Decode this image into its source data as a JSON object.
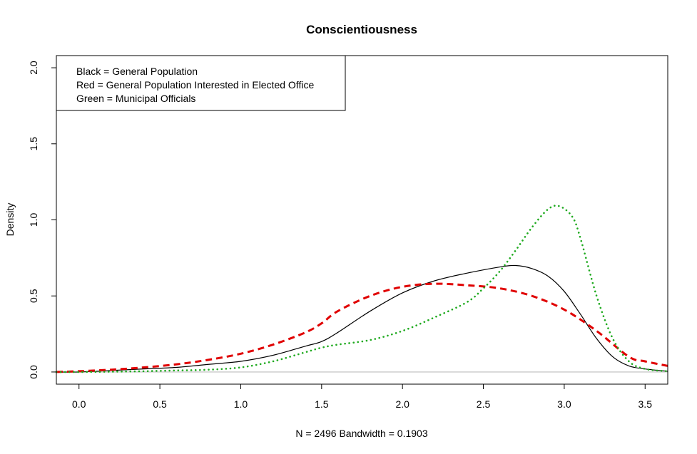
{
  "chart_data": {
    "type": "line",
    "title": "Conscientiousness",
    "xlabel": "N = 2496   Bandwidth = 0.1903",
    "ylabel": "Density",
    "xlim": [
      -0.14,
      3.64
    ],
    "ylim": [
      -0.08,
      2.08
    ],
    "x_ticks": [
      0.0,
      0.5,
      1.0,
      1.5,
      2.0,
      2.5,
      3.0,
      3.5
    ],
    "x_tick_labels": [
      "0.0",
      "0.5",
      "1.0",
      "1.5",
      "2.0",
      "2.5",
      "3.0",
      "3.5"
    ],
    "y_ticks": [
      0.0,
      0.5,
      1.0,
      1.5,
      2.0
    ],
    "y_tick_labels": [
      "0.0",
      "0.5",
      "1.0",
      "1.5",
      "2.0"
    ],
    "baseline": 0,
    "legend": {
      "placement": "top-left",
      "entries": [
        "Black = General Population",
        "Red = General Population Interested in Elected Office",
        "Green = Municipal Officials"
      ]
    },
    "series": [
      {
        "color": "#000000",
        "style": "solid",
        "x": [
          -0.14,
          0.0,
          0.2,
          0.4,
          0.6,
          0.8,
          1.0,
          1.2,
          1.4,
          1.5,
          1.6,
          1.8,
          2.0,
          2.2,
          2.4,
          2.6,
          2.7,
          2.8,
          2.9,
          3.0,
          3.1,
          3.2,
          3.3,
          3.4,
          3.5,
          3.64
        ],
        "y": [
          0.0,
          0.0,
          0.01,
          0.02,
          0.03,
          0.05,
          0.07,
          0.11,
          0.17,
          0.2,
          0.26,
          0.4,
          0.52,
          0.6,
          0.65,
          0.69,
          0.7,
          0.68,
          0.63,
          0.53,
          0.38,
          0.22,
          0.1,
          0.04,
          0.02,
          0.005
        ]
      },
      {
        "color": "#e00000",
        "style": "dashed",
        "x": [
          -0.14,
          0.0,
          0.2,
          0.4,
          0.6,
          0.8,
          1.0,
          1.2,
          1.4,
          1.5,
          1.6,
          1.8,
          2.0,
          2.2,
          2.4,
          2.6,
          2.8,
          3.0,
          3.2,
          3.4,
          3.5,
          3.64
        ],
        "y": [
          0.0,
          0.005,
          0.015,
          0.03,
          0.05,
          0.08,
          0.12,
          0.18,
          0.26,
          0.32,
          0.4,
          0.5,
          0.56,
          0.58,
          0.57,
          0.55,
          0.5,
          0.41,
          0.27,
          0.1,
          0.07,
          0.04
        ]
      },
      {
        "color": "#1faa1f",
        "style": "dotted",
        "x": [
          -0.14,
          0.0,
          0.2,
          0.4,
          0.6,
          0.8,
          1.0,
          1.2,
          1.4,
          1.5,
          1.6,
          1.8,
          2.0,
          2.2,
          2.4,
          2.5,
          2.6,
          2.7,
          2.8,
          2.9,
          2.97,
          3.05,
          3.1,
          3.2,
          3.3,
          3.4,
          3.5,
          3.64
        ],
        "y": [
          0.0,
          0.0,
          0.002,
          0.005,
          0.01,
          0.015,
          0.03,
          0.07,
          0.13,
          0.16,
          0.18,
          0.21,
          0.27,
          0.36,
          0.46,
          0.55,
          0.66,
          0.8,
          0.95,
          1.07,
          1.09,
          1.02,
          0.88,
          0.5,
          0.22,
          0.07,
          0.02,
          0.005
        ]
      }
    ]
  }
}
